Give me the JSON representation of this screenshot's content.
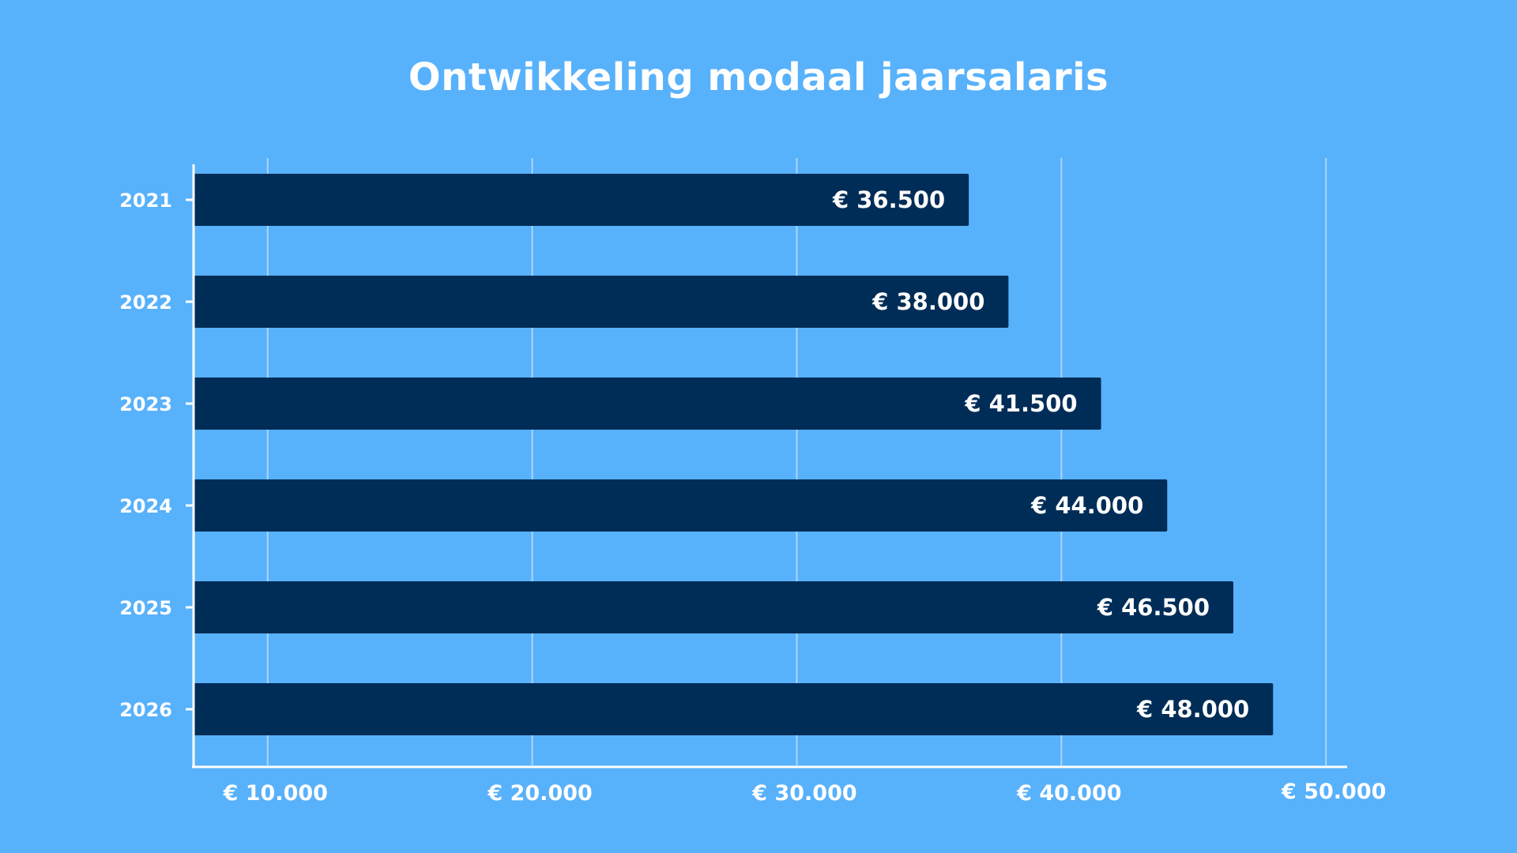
{
  "chart_data": {
    "type": "bar",
    "orientation": "horizontal",
    "title": "Ontwikkeling modaal jaarsalaris",
    "xlabel": "",
    "ylabel": "",
    "categories": [
      "2021",
      "2022",
      "2023",
      "2024",
      "2025",
      "2026"
    ],
    "values": [
      36500,
      38000,
      41500,
      44000,
      46500,
      48000
    ],
    "data_labels": [
      "€ 36.500",
      "€ 38.000",
      "€ 41.500",
      "€ 44.000",
      "€ 46.500",
      "€ 48.000"
    ],
    "x_ticks": [
      {
        "value": 10000,
        "label": "€ 10.000"
      },
      {
        "value": 20000,
        "label": "€ 20.000"
      },
      {
        "value": 30000,
        "label": "€ 30.000"
      },
      {
        "value": 40000,
        "label": "€ 40.000"
      },
      {
        "value": 50000,
        "label": "€ 50.000"
      }
    ],
    "xlim": [
      7200,
      50800
    ],
    "grid": true,
    "legend": "none",
    "colors": {
      "background": "#58b1fb",
      "bar": "#002d57",
      "text": "#ffffff",
      "axis": "#ffffff",
      "grid": "#a9d6fb"
    }
  }
}
